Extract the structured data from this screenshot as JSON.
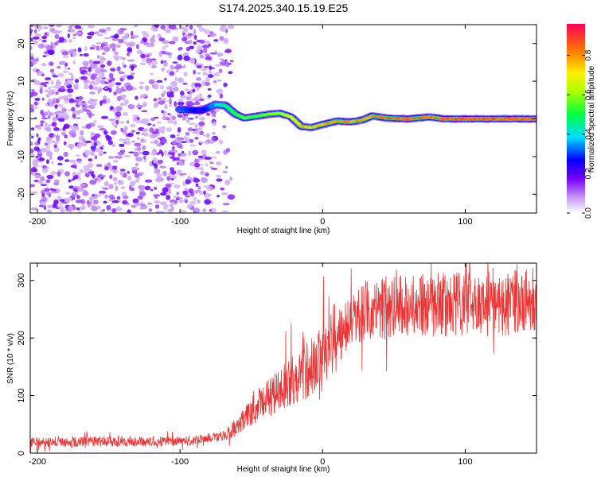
{
  "chart_data": [
    {
      "type": "heatmap",
      "title": "S174.2025.340.15.19.E25",
      "xlabel": "Height of straight line (km)",
      "ylabel": "Frequency (Hz)",
      "xlim": [
        -205,
        150
      ],
      "ylim": [
        -25,
        25
      ],
      "xticks": [
        -200,
        -100,
        0,
        100
      ],
      "yticks": [
        -20,
        -10,
        0,
        10,
        20
      ],
      "colorbar": {
        "label": "Normalized spectral amplitude",
        "ticks": [
          0.0,
          0.2,
          0.4,
          0.6,
          0.8
        ],
        "range": [
          0,
          0.96
        ]
      },
      "noise_region_x": [
        -205,
        -65
      ],
      "signal_track": [
        {
          "x": -100,
          "y": 2.5,
          "a": 0.35
        },
        {
          "x": -92,
          "y": 2.3,
          "a": 0.3
        },
        {
          "x": -85,
          "y": 2.2,
          "a": 0.25
        },
        {
          "x": -75,
          "y": 3.8,
          "a": 0.4
        },
        {
          "x": -68,
          "y": 3.5,
          "a": 0.5
        },
        {
          "x": -62,
          "y": 1.5,
          "a": 0.55
        },
        {
          "x": -55,
          "y": 0.2,
          "a": 0.6
        },
        {
          "x": -45,
          "y": 0.8,
          "a": 0.6
        },
        {
          "x": -38,
          "y": 1.2,
          "a": 0.65
        },
        {
          "x": -30,
          "y": 1.5,
          "a": 0.7
        },
        {
          "x": -22,
          "y": 0.5,
          "a": 0.75
        },
        {
          "x": -15,
          "y": -2.0,
          "a": 0.85
        },
        {
          "x": -8,
          "y": -2.3,
          "a": 0.8
        },
        {
          "x": 0,
          "y": -1.5,
          "a": 0.85
        },
        {
          "x": 10,
          "y": -0.6,
          "a": 0.88
        },
        {
          "x": 20,
          "y": -0.8,
          "a": 0.88
        },
        {
          "x": 28,
          "y": -0.3,
          "a": 0.85
        },
        {
          "x": 35,
          "y": 0.8,
          "a": 0.88
        },
        {
          "x": 45,
          "y": 0.2,
          "a": 0.92
        },
        {
          "x": 60,
          "y": 0.0,
          "a": 0.92
        },
        {
          "x": 75,
          "y": 0.5,
          "a": 0.9
        },
        {
          "x": 85,
          "y": 0.0,
          "a": 0.92
        },
        {
          "x": 100,
          "y": 0.0,
          "a": 0.93
        },
        {
          "x": 115,
          "y": 0.0,
          "a": 0.93
        },
        {
          "x": 130,
          "y": 0.0,
          "a": 0.93
        },
        {
          "x": 150,
          "y": 0.0,
          "a": 0.93
        }
      ]
    },
    {
      "type": "line",
      "title": "",
      "xlabel": "Height of straight line (km)",
      "ylabel": "SNR (10 * v/v)",
      "xlim": [
        -205,
        150
      ],
      "ylim": [
        0,
        330
      ],
      "xticks": [
        -200,
        -100,
        0,
        100
      ],
      "yticks": [
        0,
        100,
        200,
        300
      ],
      "color": "#ee3333",
      "trend": [
        {
          "x": -205,
          "y": 20
        },
        {
          "x": -120,
          "y": 20
        },
        {
          "x": -90,
          "y": 22
        },
        {
          "x": -70,
          "y": 30
        },
        {
          "x": -60,
          "y": 45
        },
        {
          "x": -45,
          "y": 85
        },
        {
          "x": -30,
          "y": 110
        },
        {
          "x": -15,
          "y": 135
        },
        {
          "x": 0,
          "y": 165
        },
        {
          "x": 10,
          "y": 200
        },
        {
          "x": 20,
          "y": 230
        },
        {
          "x": 30,
          "y": 248
        },
        {
          "x": 50,
          "y": 255
        },
        {
          "x": 80,
          "y": 258
        },
        {
          "x": 110,
          "y": 258
        },
        {
          "x": 150,
          "y": 265
        }
      ]
    }
  ]
}
